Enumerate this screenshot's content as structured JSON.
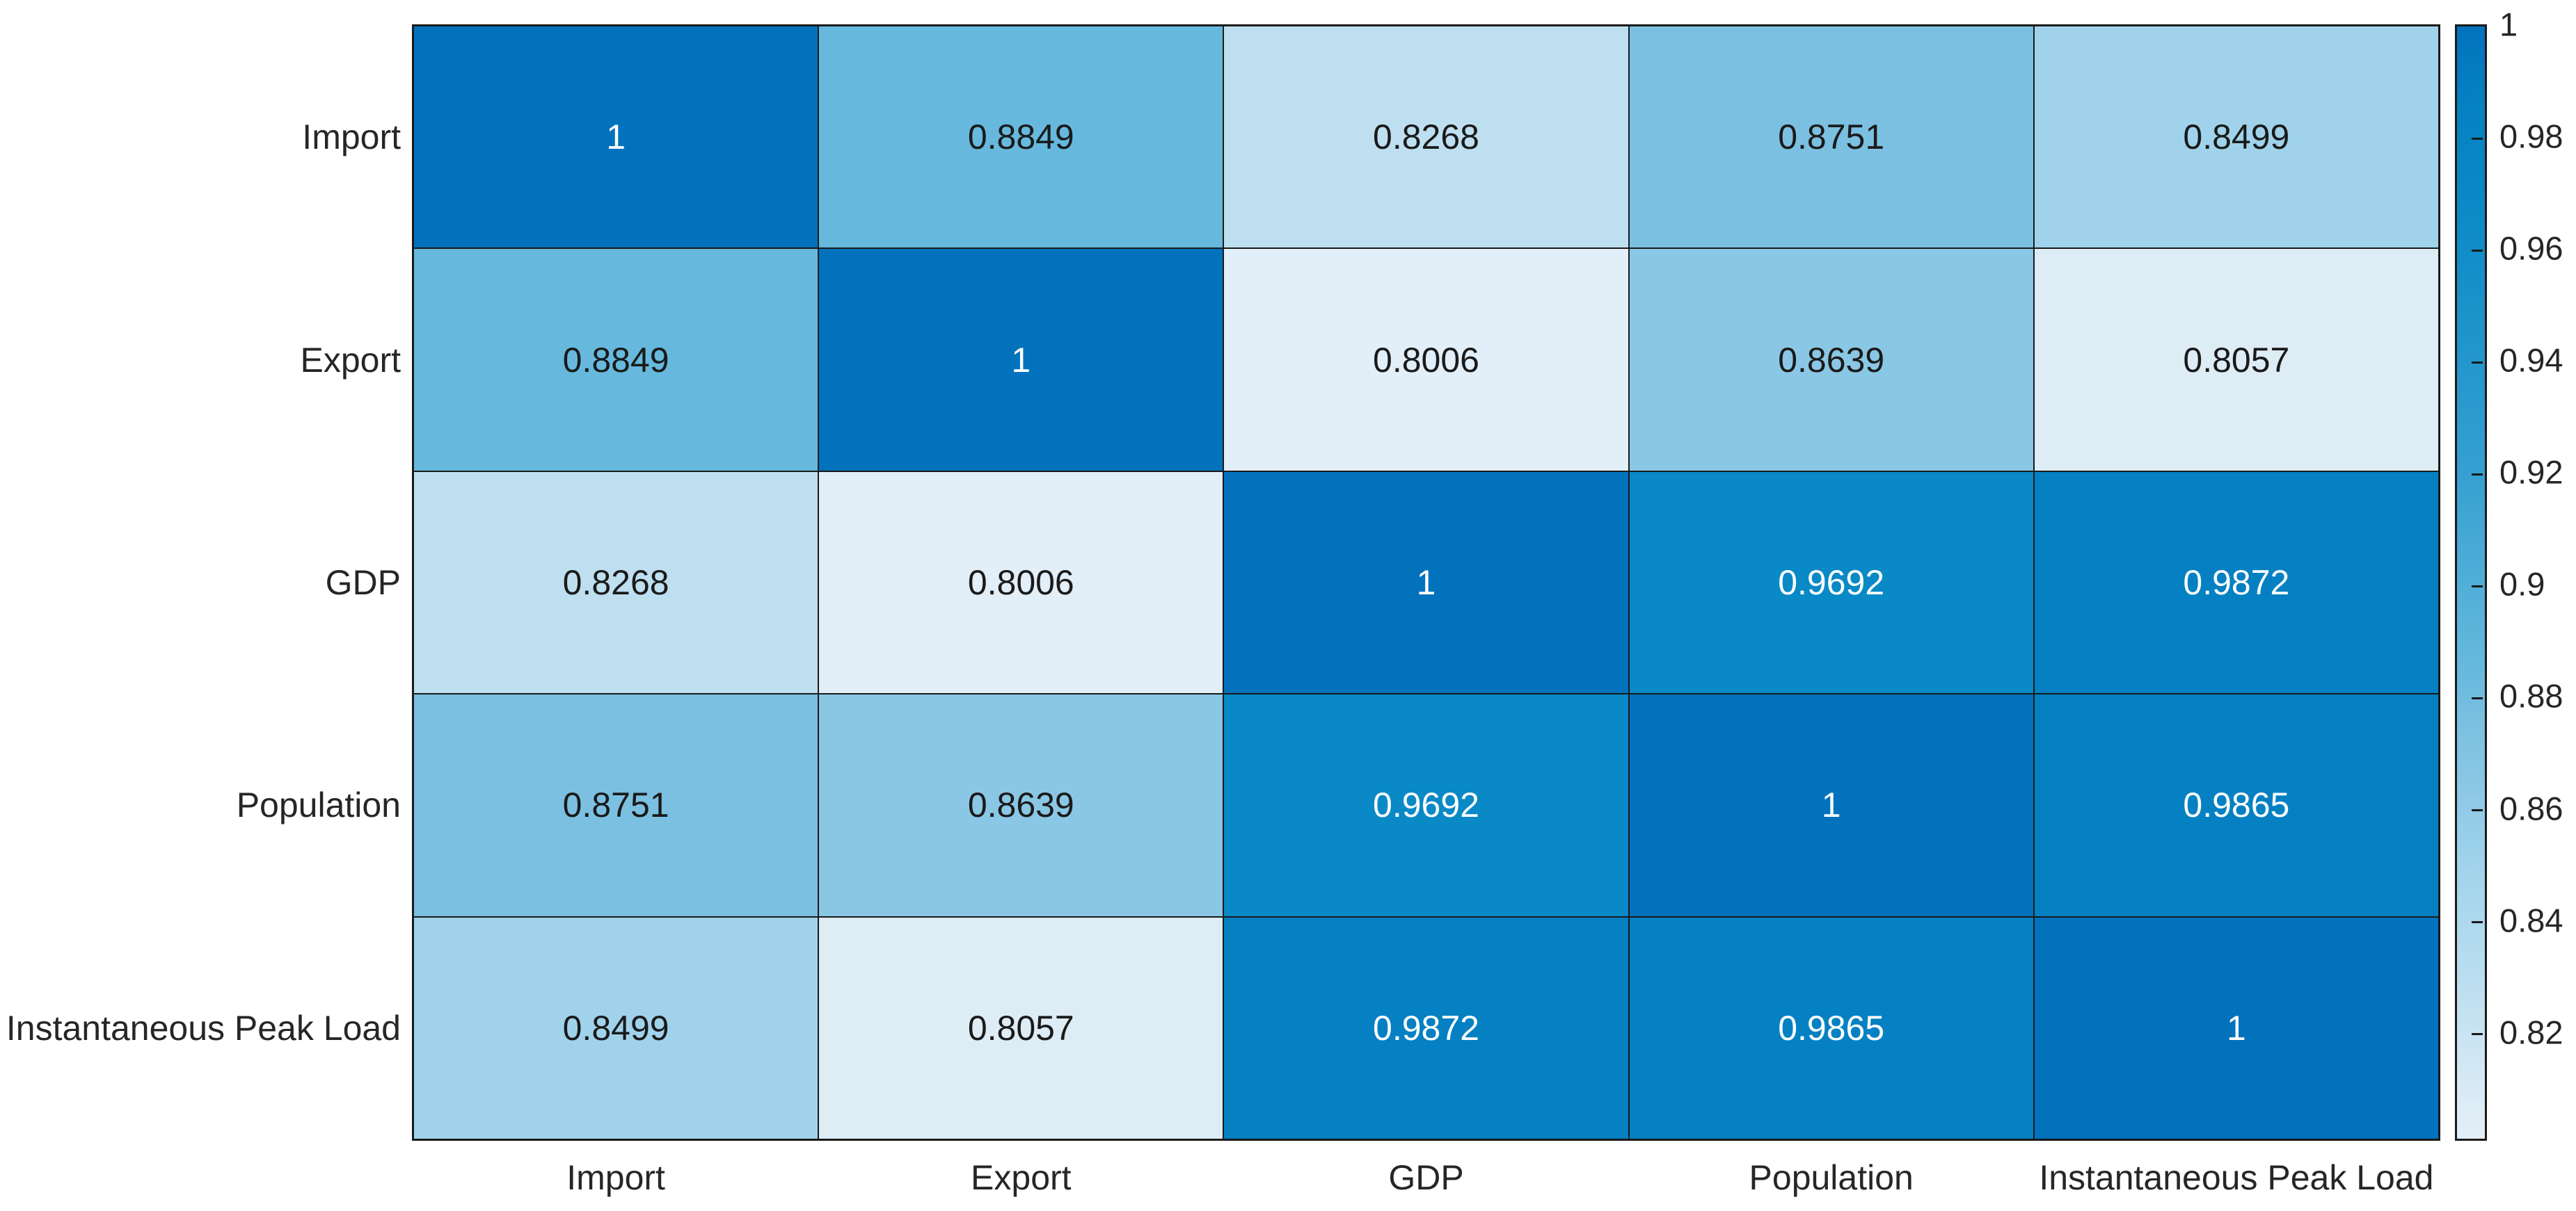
{
  "chart_data": {
    "type": "heatmap",
    "title": "",
    "xlabel": "",
    "ylabel": "",
    "categories": [
      "Import",
      "Export",
      "GDP",
      "Population",
      "Instantaneous Peak Load"
    ],
    "matrix": [
      [
        1,
        0.8849,
        0.8268,
        0.8751,
        0.8499
      ],
      [
        0.8849,
        1,
        0.8006,
        0.8639,
        0.8057
      ],
      [
        0.8268,
        0.8006,
        1,
        0.9692,
        0.9872
      ],
      [
        0.8751,
        0.8639,
        0.9692,
        1,
        0.9865
      ],
      [
        0.8499,
        0.8057,
        0.9872,
        0.9865,
        1
      ]
    ],
    "display": [
      [
        "1",
        "0.8849",
        "0.8268",
        "0.8751",
        "0.8499"
      ],
      [
        "0.8849",
        "1",
        "0.8006",
        "0.8639",
        "0.8057"
      ],
      [
        "0.8268",
        "0.8006",
        "1",
        "0.9692",
        "0.9872"
      ],
      [
        "0.8751",
        "0.8639",
        "0.9692",
        "1",
        "0.9865"
      ],
      [
        "0.8499",
        "0.8057",
        "0.9872",
        "0.9865",
        "1"
      ]
    ],
    "colorbar": {
      "min": 0.8006,
      "max": 1,
      "tick_values": [
        1,
        0.98,
        0.96,
        0.94,
        0.92,
        0.9,
        0.88,
        0.86,
        0.84,
        0.82
      ],
      "tick_labels": [
        "1",
        "0.98",
        "0.96",
        "0.94",
        "0.92",
        "0.9",
        "0.88",
        "0.86",
        "0.84",
        "0.82"
      ]
    },
    "color_scale": [
      {
        "value": 1.0,
        "color": "#0272BC"
      },
      {
        "value": 0.9872,
        "color": "#0580C2"
      },
      {
        "value": 0.9865,
        "color": "#0581C3"
      },
      {
        "value": 0.9692,
        "color": "#0989C6"
      },
      {
        "value": 0.92,
        "color": "#35A0D1"
      },
      {
        "value": 0.8849,
        "color": "#66B9DD"
      },
      {
        "value": 0.8751,
        "color": "#7BC0E1"
      },
      {
        "value": 0.8639,
        "color": "#8AC7E5"
      },
      {
        "value": 0.8499,
        "color": "#A0D3EB"
      },
      {
        "value": 0.8268,
        "color": "#BEDFF0"
      },
      {
        "value": 0.8057,
        "color": "#DEECF6"
      },
      {
        "value": 0.8006,
        "color": "#E2EEF8"
      }
    ],
    "text_rule": {
      "threshold": 0.95,
      "light": "#FFFFFF",
      "dark": "#1A1A1A"
    },
    "grid_color": "#1A1A1A",
    "background": "#FFFFFF",
    "legend_position": "right-colorbar",
    "grid": "on"
  }
}
